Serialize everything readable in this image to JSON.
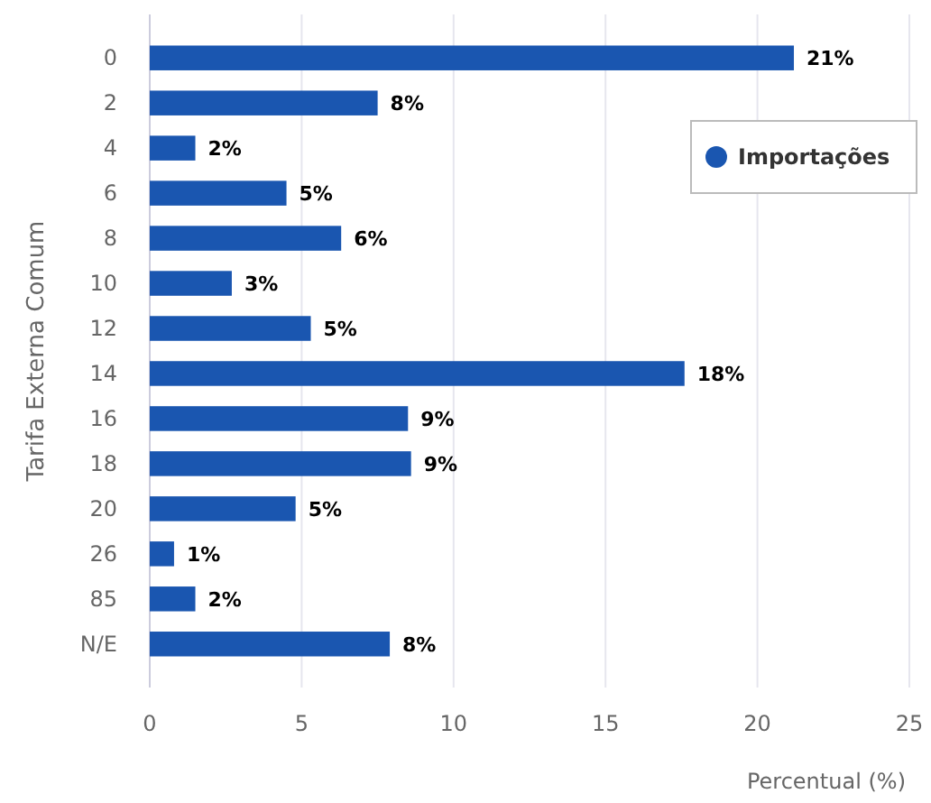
{
  "chart_data": {
    "type": "bar",
    "orientation": "horizontal",
    "ylabel": "Tarifa Externa Comum",
    "xlabel": "Percentual (%)",
    "categories": [
      "0",
      "2",
      "4",
      "6",
      "8",
      "10",
      "12",
      "14",
      "16",
      "18",
      "20",
      "26",
      "85",
      "N/E"
    ],
    "series": [
      {
        "name": "Importações",
        "color": "#1a56b0",
        "values": [
          21.2,
          7.5,
          1.5,
          4.5,
          6.3,
          2.7,
          5.3,
          17.6,
          8.5,
          8.6,
          4.8,
          0.8,
          1.5,
          7.9
        ],
        "value_labels": [
          "21%",
          "8%",
          "2%",
          "5%",
          "6%",
          "3%",
          "5%",
          "18%",
          "9%",
          "9%",
          "5%",
          "1%",
          "2%",
          "8%"
        ]
      }
    ],
    "xlim": [
      0,
      25
    ],
    "xticks": [
      0,
      5,
      10,
      15,
      20,
      25
    ],
    "grid": "x",
    "legend": "top right"
  }
}
